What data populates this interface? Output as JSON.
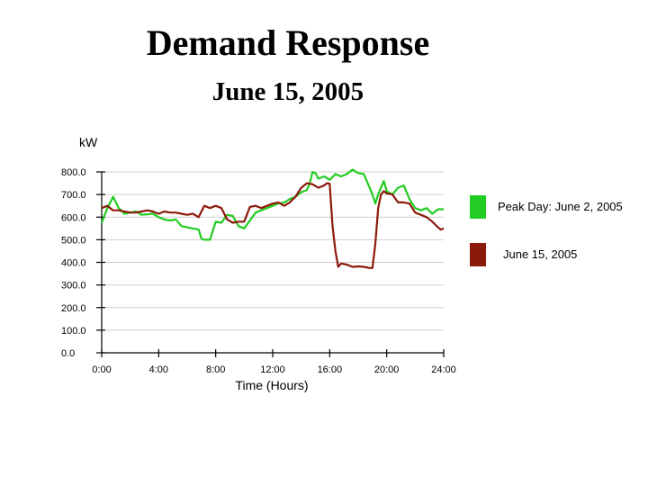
{
  "header": {
    "title": "Demand Response",
    "subtitle": "June 15, 2005"
  },
  "chart_data": {
    "type": "line",
    "title": "Demand Response",
    "subtitle": "June 15, 2005",
    "ylabel": "kW",
    "xlabel": "Time (Hours)",
    "xlim": [
      0,
      24
    ],
    "ylim": [
      0,
      800
    ],
    "x_ticks": [
      0,
      4,
      8,
      12,
      16,
      20,
      24
    ],
    "x_tick_labels": [
      "0:00",
      "4:00",
      "8:00",
      "12:00",
      "16:00",
      "20:00",
      "24:00"
    ],
    "y_ticks": [
      0,
      100,
      200,
      300,
      400,
      500,
      600,
      700,
      800
    ],
    "y_tick_labels": [
      "0.0",
      "100.0",
      "200.0",
      "300.0",
      "400.0",
      "500.0",
      "600.0",
      "700.0",
      "800.0"
    ],
    "grid": {
      "horizontal": true,
      "vertical": false
    },
    "legend_position": "right",
    "series": [
      {
        "name": "Peak Day: June 2, 2005",
        "color": "#22cc22",
        "points": [
          [
            0.0,
            575
          ],
          [
            0.4,
            640
          ],
          [
            0.8,
            690
          ],
          [
            1.2,
            640
          ],
          [
            1.6,
            615
          ],
          [
            2.0,
            620
          ],
          [
            2.4,
            625
          ],
          [
            2.8,
            610
          ],
          [
            3.2,
            612
          ],
          [
            3.6,
            615
          ],
          [
            4.0,
            600
          ],
          [
            4.4,
            590
          ],
          [
            4.8,
            585
          ],
          [
            5.2,
            590
          ],
          [
            5.6,
            560
          ],
          [
            6.0,
            555
          ],
          [
            6.4,
            550
          ],
          [
            6.8,
            545
          ],
          [
            7.0,
            505
          ],
          [
            7.2,
            500
          ],
          [
            7.6,
            500
          ],
          [
            8.0,
            580
          ],
          [
            8.4,
            575
          ],
          [
            8.8,
            610
          ],
          [
            9.2,
            605
          ],
          [
            9.6,
            560
          ],
          [
            10.0,
            550
          ],
          [
            10.4,
            585
          ],
          [
            10.8,
            620
          ],
          [
            11.2,
            630
          ],
          [
            11.6,
            640
          ],
          [
            12.0,
            650
          ],
          [
            12.4,
            660
          ],
          [
            12.8,
            665
          ],
          [
            13.2,
            680
          ],
          [
            13.6,
            690
          ],
          [
            14.0,
            710
          ],
          [
            14.4,
            720
          ],
          [
            14.6,
            750
          ],
          [
            14.8,
            800
          ],
          [
            15.0,
            795
          ],
          [
            15.2,
            770
          ],
          [
            15.6,
            780
          ],
          [
            16.0,
            765
          ],
          [
            16.4,
            790
          ],
          [
            16.8,
            780
          ],
          [
            17.2,
            790
          ],
          [
            17.6,
            810
          ],
          [
            18.0,
            795
          ],
          [
            18.4,
            790
          ],
          [
            18.8,
            730
          ],
          [
            19.0,
            700
          ],
          [
            19.2,
            660
          ],
          [
            19.4,
            700
          ],
          [
            19.6,
            730
          ],
          [
            19.8,
            760
          ],
          [
            20.0,
            715
          ],
          [
            20.4,
            700
          ],
          [
            20.8,
            730
          ],
          [
            21.2,
            740
          ],
          [
            21.6,
            680
          ],
          [
            22.0,
            640
          ],
          [
            22.4,
            630
          ],
          [
            22.8,
            640
          ],
          [
            23.2,
            615
          ],
          [
            23.6,
            635
          ],
          [
            24.0,
            635
          ]
        ]
      },
      {
        "name": "June 15, 2005",
        "color": "#8b1a0a",
        "points": [
          [
            0.0,
            640
          ],
          [
            0.4,
            650
          ],
          [
            0.8,
            630
          ],
          [
            1.2,
            630
          ],
          [
            1.6,
            625
          ],
          [
            2.0,
            620
          ],
          [
            2.4,
            620
          ],
          [
            2.8,
            625
          ],
          [
            3.2,
            630
          ],
          [
            3.6,
            625
          ],
          [
            4.0,
            615
          ],
          [
            4.4,
            625
          ],
          [
            4.8,
            620
          ],
          [
            5.2,
            620
          ],
          [
            5.6,
            615
          ],
          [
            6.0,
            610
          ],
          [
            6.4,
            615
          ],
          [
            6.8,
            600
          ],
          [
            7.0,
            625
          ],
          [
            7.2,
            650
          ],
          [
            7.6,
            640
          ],
          [
            8.0,
            650
          ],
          [
            8.4,
            640
          ],
          [
            8.8,
            590
          ],
          [
            9.2,
            575
          ],
          [
            9.6,
            580
          ],
          [
            10.0,
            580
          ],
          [
            10.4,
            645
          ],
          [
            10.8,
            650
          ],
          [
            11.2,
            640
          ],
          [
            11.6,
            650
          ],
          [
            12.0,
            660
          ],
          [
            12.4,
            665
          ],
          [
            12.8,
            650
          ],
          [
            13.2,
            665
          ],
          [
            13.6,
            690
          ],
          [
            14.0,
            730
          ],
          [
            14.4,
            750
          ],
          [
            14.8,
            745
          ],
          [
            15.2,
            730
          ],
          [
            15.6,
            740
          ],
          [
            15.8,
            750
          ],
          [
            16.0,
            748
          ],
          [
            16.2,
            560
          ],
          [
            16.4,
            450
          ],
          [
            16.6,
            380
          ],
          [
            16.8,
            395
          ],
          [
            17.2,
            390
          ],
          [
            17.6,
            380
          ],
          [
            18.0,
            382
          ],
          [
            18.4,
            380
          ],
          [
            18.8,
            375
          ],
          [
            19.0,
            375
          ],
          [
            19.2,
            480
          ],
          [
            19.4,
            640
          ],
          [
            19.6,
            700
          ],
          [
            19.8,
            715
          ],
          [
            20.0,
            705
          ],
          [
            20.4,
            700
          ],
          [
            20.8,
            665
          ],
          [
            21.2,
            665
          ],
          [
            21.6,
            660
          ],
          [
            22.0,
            620
          ],
          [
            22.4,
            610
          ],
          [
            22.8,
            600
          ],
          [
            23.2,
            580
          ],
          [
            23.6,
            555
          ],
          [
            23.8,
            545
          ],
          [
            24.0,
            550
          ]
        ]
      }
    ]
  }
}
